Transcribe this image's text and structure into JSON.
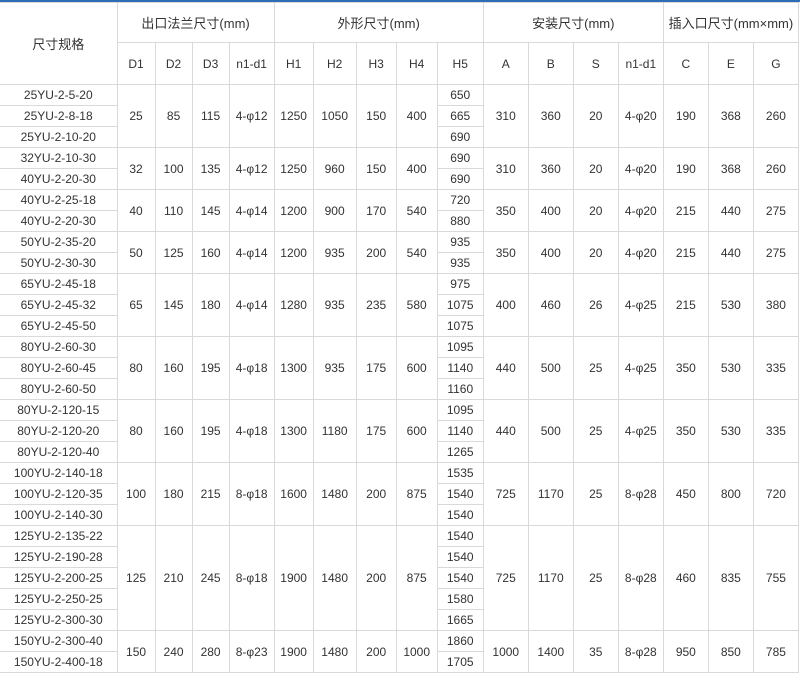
{
  "colors": {
    "top_border": "#2e6db4",
    "grid": "#d9d9d9",
    "text": "#333333"
  },
  "header": {
    "model": "尺寸规格",
    "groups": [
      "出口法兰尺寸(mm)",
      "外形尺寸(mm)",
      "安装尺寸(mm)",
      "插入口尺寸(mm×mm)"
    ],
    "columns": [
      "D1",
      "D2",
      "D3",
      "n1-d1",
      "H1",
      "H2",
      "H3",
      "H4",
      "H5",
      "A",
      "B",
      "S",
      "n1-d1",
      "C",
      "E",
      "G"
    ]
  },
  "groups": [
    {
      "models": [
        "25YU-2-5-20",
        "25YU-2-8-18",
        "25YU-2-10-20"
      ],
      "h5": [
        "650",
        "665",
        "690"
      ],
      "flange": [
        "25",
        "85",
        "115",
        "4-φ12"
      ],
      "shape": [
        "1250",
        "1050",
        "150",
        "400"
      ],
      "install": [
        "310",
        "360",
        "20",
        "4-φ20"
      ],
      "inlet": [
        "190",
        "368",
        "260"
      ]
    },
    {
      "models": [
        "32YU-2-10-30",
        "40YU-2-20-30"
      ],
      "h5": [
        "690",
        "690"
      ],
      "flange": [
        "32",
        "100",
        "135",
        "4-φ12"
      ],
      "shape": [
        "1250",
        "960",
        "150",
        "400"
      ],
      "install": [
        "310",
        "360",
        "20",
        "4-φ20"
      ],
      "inlet": [
        "190",
        "368",
        "260"
      ]
    },
    {
      "models": [
        "40YU-2-25-18",
        "40YU-2-20-30"
      ],
      "h5": [
        "720",
        "880"
      ],
      "flange": [
        "40",
        "110",
        "145",
        "4-φ14"
      ],
      "shape": [
        "1200",
        "900",
        "170",
        "540"
      ],
      "install": [
        "350",
        "400",
        "20",
        "4-φ20"
      ],
      "inlet": [
        "215",
        "440",
        "275"
      ]
    },
    {
      "models": [
        "50YU-2-35-20",
        "50YU-2-30-30"
      ],
      "h5": [
        "935",
        "935"
      ],
      "flange": [
        "50",
        "125",
        "160",
        "4-φ14"
      ],
      "shape": [
        "1200",
        "935",
        "200",
        "540"
      ],
      "install": [
        "350",
        "400",
        "20",
        "4-φ20"
      ],
      "inlet": [
        "215",
        "440",
        "275"
      ]
    },
    {
      "models": [
        "65YU-2-45-18",
        "65YU-2-45-32",
        "65YU-2-45-50"
      ],
      "h5": [
        "975",
        "1075",
        "1075"
      ],
      "flange": [
        "65",
        "145",
        "180",
        "4-φ14"
      ],
      "shape": [
        "1280",
        "935",
        "235",
        "580"
      ],
      "install": [
        "400",
        "460",
        "26",
        "4-φ25"
      ],
      "inlet": [
        "215",
        "530",
        "380"
      ]
    },
    {
      "models": [
        "80YU-2-60-30",
        "80YU-2-60-45",
        "80YU-2-60-50"
      ],
      "h5": [
        "1095",
        "1140",
        "1160"
      ],
      "flange": [
        "80",
        "160",
        "195",
        "4-φ18"
      ],
      "shape": [
        "1300",
        "935",
        "175",
        "600"
      ],
      "install": [
        "440",
        "500",
        "25",
        "4-φ25"
      ],
      "inlet": [
        "350",
        "530",
        "335"
      ]
    },
    {
      "models": [
        "80YU-2-120-15",
        "80YU-2-120-20",
        "80YU-2-120-40"
      ],
      "h5": [
        "1095",
        "1140",
        "1265"
      ],
      "flange": [
        "80",
        "160",
        "195",
        "4-φ18"
      ],
      "shape": [
        "1300",
        "1180",
        "175",
        "600"
      ],
      "install": [
        "440",
        "500",
        "25",
        "4-φ25"
      ],
      "inlet": [
        "350",
        "530",
        "335"
      ]
    },
    {
      "models": [
        "100YU-2-140-18",
        "100YU-2-120-35",
        "100YU-2-140-30"
      ],
      "h5": [
        "1535",
        "1540",
        "1540"
      ],
      "flange": [
        "100",
        "180",
        "215",
        "8-φ18"
      ],
      "shape": [
        "1600",
        "1480",
        "200",
        "875"
      ],
      "install": [
        "725",
        "1170",
        "25",
        "8-φ28"
      ],
      "inlet": [
        "450",
        "800",
        "720"
      ]
    },
    {
      "models": [
        "125YU-2-135-22",
        "125YU-2-190-28",
        "125YU-2-200-25",
        "125YU-2-250-25",
        "125YU-2-300-30"
      ],
      "h5": [
        "1540",
        "1540",
        "1540",
        "1580",
        "1665"
      ],
      "flange": [
        "125",
        "210",
        "245",
        "8-φ18"
      ],
      "shape": [
        "1900",
        "1480",
        "200",
        "875"
      ],
      "install": [
        "725",
        "1170",
        "25",
        "8-φ28"
      ],
      "inlet": [
        "460",
        "835",
        "755"
      ]
    },
    {
      "models": [
        "150YU-2-300-40",
        "150YU-2-400-18"
      ],
      "h5": [
        "1860",
        "1705"
      ],
      "flange": [
        "150",
        "240",
        "280",
        "8-φ23"
      ],
      "shape": [
        "1900",
        "1480",
        "200",
        "1000"
      ],
      "install": [
        "1000",
        "1400",
        "35",
        "8-φ28"
      ],
      "inlet": [
        "950",
        "850",
        "785"
      ]
    }
  ]
}
